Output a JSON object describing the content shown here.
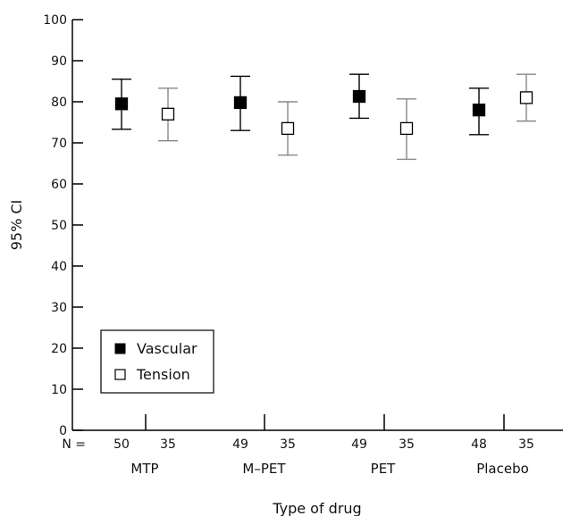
{
  "chart_data": {
    "type": "scatter",
    "title": "",
    "xlabel": "Type of drug",
    "ylabel": "95% CI",
    "ylim": [
      0,
      100
    ],
    "yticks": [
      "0",
      "10",
      "20",
      "30",
      "40",
      "50",
      "60",
      "70",
      "80",
      "90",
      "100"
    ],
    "n_prefix": "N =",
    "categories": [
      "MTP",
      "M–PET",
      "PET",
      "Placebo"
    ],
    "legend_position": "bottom-left",
    "series": [
      {
        "name": "Vascular",
        "marker": "filled-square",
        "color": "#000000",
        "errorbar_color": "#000000",
        "n": [
          "50",
          "49",
          "49",
          "48"
        ],
        "mean": [
          79.5,
          79.8,
          81.3,
          78.0
        ],
        "ci_low": [
          73.3,
          73.0,
          76.0,
          72.0
        ],
        "ci_high": [
          85.5,
          86.2,
          86.7,
          83.3
        ]
      },
      {
        "name": "Tension",
        "marker": "open-square",
        "color": "#ffffff",
        "errorbar_color": "#888888",
        "n": [
          "35",
          "35",
          "35",
          "35"
        ],
        "mean": [
          77.0,
          73.5,
          73.5,
          81.0
        ],
        "ci_low": [
          70.5,
          67.0,
          66.0,
          75.3
        ],
        "ci_high": [
          83.3,
          80.0,
          80.7,
          86.7
        ]
      }
    ]
  }
}
